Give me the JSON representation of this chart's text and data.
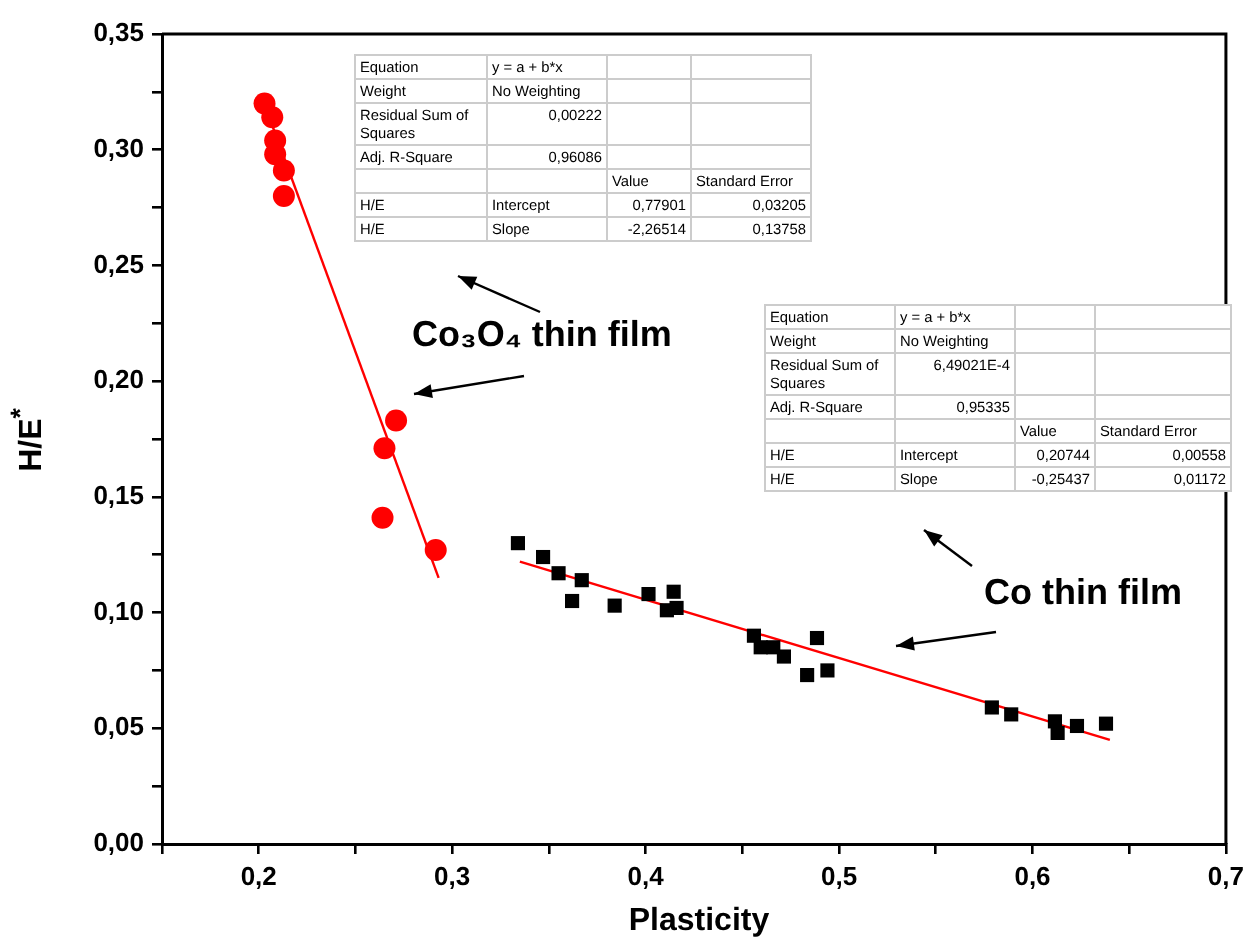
{
  "chart_data": {
    "type": "scatter",
    "xlabel": "Plasticity",
    "ylabel": "H/E$^{*}$",
    "xlim": [
      0.15,
      0.7
    ],
    "ylim": [
      0,
      0.35
    ],
    "xticks": [
      {
        "value": 0.15,
        "label": null
      },
      {
        "value": 0.2,
        "label": "0,2"
      },
      {
        "value": 0.25,
        "label": null
      },
      {
        "value": 0.3,
        "label": "0,3"
      },
      {
        "value": 0.35,
        "label": null
      },
      {
        "value": 0.4,
        "label": "0,4"
      },
      {
        "value": 0.45,
        "label": null
      },
      {
        "value": 0.5,
        "label": "0,5"
      },
      {
        "value": 0.55,
        "label": null
      },
      {
        "value": 0.6,
        "label": "0,6"
      },
      {
        "value": 0.65,
        "label": null
      },
      {
        "value": 0.7,
        "label": "0,7"
      }
    ],
    "yticks": [
      {
        "value": 0,
        "label": "0,00"
      },
      {
        "value": 0.025,
        "label": null
      },
      {
        "value": 0.05,
        "label": "0,05"
      },
      {
        "value": 0.075,
        "label": null
      },
      {
        "value": 0.1,
        "label": "0,10"
      },
      {
        "value": 0.125,
        "label": null
      },
      {
        "value": 0.15,
        "label": "0,15"
      },
      {
        "value": 0.175,
        "label": null
      },
      {
        "value": 0.2,
        "label": "0,20"
      },
      {
        "value": 0.225,
        "label": null
      },
      {
        "value": 0.25,
        "label": "0,25"
      },
      {
        "value": 0.275,
        "label": null
      },
      {
        "value": 0.3,
        "label": "0,30"
      },
      {
        "value": 0.325,
        "label": null
      },
      {
        "value": 0.35,
        "label": "0,35"
      }
    ],
    "grid": false,
    "legend": false,
    "series": [
      {
        "type": "scatter",
        "marker": "circle",
        "color": "#ff0000",
        "x": [
          0.203,
          0.207,
          0.2085,
          0.2085,
          0.213,
          0.213,
          0.271,
          0.265,
          0.264,
          0.2915
        ],
        "values": [
          0.32,
          0.314,
          0.304,
          0.298,
          0.291,
          0.28,
          0.183,
          0.171,
          0.141,
          0.127
        ]
      },
      {
        "type": "scatter",
        "marker": "square",
        "color": "#000000",
        "x": [
          0.334,
          0.347,
          0.355,
          0.362,
          0.367,
          0.384,
          0.4015,
          0.4145,
          0.411,
          0.416,
          0.456,
          0.4595,
          0.466,
          0.4715,
          0.4886,
          0.4835,
          0.494,
          0.579,
          0.589,
          0.6116,
          0.613,
          0.623,
          0.638
        ],
        "values": [
          0.13,
          0.124,
          0.117,
          0.105,
          0.114,
          0.103,
          0.108,
          0.109,
          0.101,
          0.102,
          0.09,
          0.085,
          0.085,
          0.081,
          0.089,
          0.073,
          0.075,
          0.059,
          0.056,
          0.053,
          0.048,
          0.051,
          0.052
        ]
      },
      {
        "type": "line",
        "marker": "none",
        "color": "#ff0000",
        "x": [
          0.205,
          0.293
        ],
        "values": [
          0.315,
          0.115
        ]
      },
      {
        "type": "line",
        "marker": "none",
        "color": "#ff0000",
        "x": [
          0.335,
          0.64
        ],
        "values": [
          0.122,
          0.045
        ]
      }
    ],
    "annotations": [
      "Equation",
      "y = a + b*x",
      "Weight",
      "No Weighting",
      "Residual Sum of Squares",
      "0,00222",
      "Adj. R-Square",
      "0,96086",
      "Value",
      "Standard Error",
      "H/E",
      "Intercept",
      "0,77901",
      "0,03205",
      "H/E",
      "Slope",
      "-2,26514",
      "0,13758",
      "Equation",
      "y = a + b*x",
      "Weight",
      "No Weighting",
      "Residual Sum of Squares",
      "6,49021E-4",
      "Adj. R-Square",
      "0,95335",
      "Value",
      "Standard Error",
      "H/E",
      "Intercept",
      "0,20744",
      "0,00558",
      "H/E",
      "Slope",
      "-0,25437",
      "0,01172",
      "Co₃O₄ thin film",
      "Co thin film"
    ]
  }
}
